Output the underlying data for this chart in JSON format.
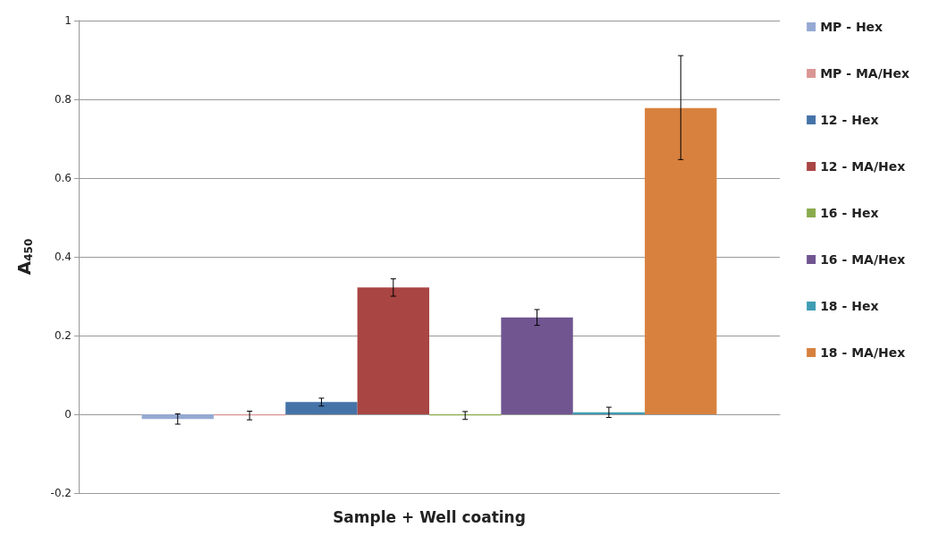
{
  "chart_data": {
    "type": "bar",
    "xlabel": "Sample + Well coating",
    "ylabel": "A$_{450}$",
    "categories": [
      null
    ],
    "series": [
      {
        "name": "MP - Hex",
        "color": "#95a9d3",
        "values": [
          -0.012
        ],
        "errors": [
          0.013
        ]
      },
      {
        "name": "MP - MA/Hex",
        "color": "#d99694",
        "values": [
          -0.003
        ],
        "errors": [
          0.011
        ]
      },
      {
        "name": "12 - Hex",
        "color": "#4573a8",
        "values": [
          0.031
        ],
        "errors": [
          0.01
        ]
      },
      {
        "name": "12 - MA/Hex",
        "color": "#a94543",
        "values": [
          0.322
        ],
        "errors": [
          0.022
        ]
      },
      {
        "name": "16 - Hex",
        "color": "#8aab4d",
        "values": [
          -0.003
        ],
        "errors": [
          0.01
        ]
      },
      {
        "name": "16 - MA/Hex",
        "color": "#705590",
        "values": [
          0.246
        ],
        "errors": [
          0.02
        ]
      },
      {
        "name": "18 - Hex",
        "color": "#3f9db5",
        "values": [
          0.005
        ],
        "errors": [
          0.013
        ]
      },
      {
        "name": "18 - MA/Hex",
        "color": "#d8813e",
        "values": [
          0.778
        ],
        "errors": [
          [
            0.647,
            0.911
          ]
        ]
      }
    ],
    "ylim": [
      -0.2,
      1
    ],
    "yticks": [
      -0.2,
      0,
      0.2,
      0.4,
      0.6,
      0.8,
      1
    ],
    "grid": "y",
    "legend": "right"
  }
}
